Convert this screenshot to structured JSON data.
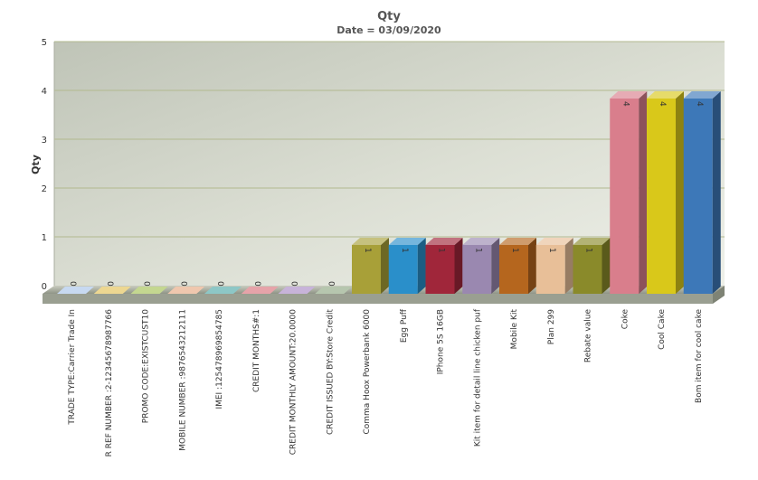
{
  "chart_data": {
    "type": "bar",
    "title": "Qty",
    "subtitle": "Date = 03/09/2020",
    "xlabel": "",
    "ylabel": "Qty",
    "ylim": [
      0,
      5
    ],
    "yticks": [
      0,
      1,
      2,
      3,
      4,
      5
    ],
    "grid": true,
    "legend": "none",
    "categories": [
      "TRADE TYPE:Carrier Trade In",
      "R REF NUMBER :2-1234567898​7766",
      "PROMO CODE:EXISTCUST10",
      "MOBILE NUMBER :9876543212111",
      "IMEI :125478969854785",
      "CREDIT MONTHS#:1",
      "CREDIT MONTHLY AMOUNT:20.0000",
      "CREDIT ISSUED BY:Store Credit",
      "Comma Hoox Powerbank 6000",
      "Egg Puff",
      "IPhone 5S 16GB",
      "Kit item for detail line chicken puf",
      "Mobile Kit",
      "Plan 299",
      "Rebate value",
      "Coke",
      "Cool Cake",
      "Bom item for cool cake"
    ],
    "values": [
      0,
      0,
      0,
      0,
      0,
      0,
      0,
      0,
      1,
      1,
      1,
      1,
      1,
      1,
      1,
      4,
      4,
      4
    ],
    "value_labels": [
      "0",
      "0",
      "0",
      "0",
      "0",
      "0",
      "0",
      "0",
      "1",
      "1",
      "1",
      "1",
      "1",
      "1",
      "1",
      "4",
      "4",
      "4"
    ],
    "colors": [
      "#a9c4ea",
      "#e3c155",
      "#a4c254",
      "#e6a983",
      "#4fa9a8",
      "#d9727a",
      "#a98ac4",
      "#8fa882",
      "#a8a038",
      "#2a8fca",
      "#a0263a",
      "#9a88b0",
      "#b5661e",
      "#e8bf98",
      "#8a8a2a",
      "#d97e8c",
      "#d9c81a",
      "#3d78b8"
    ]
  }
}
